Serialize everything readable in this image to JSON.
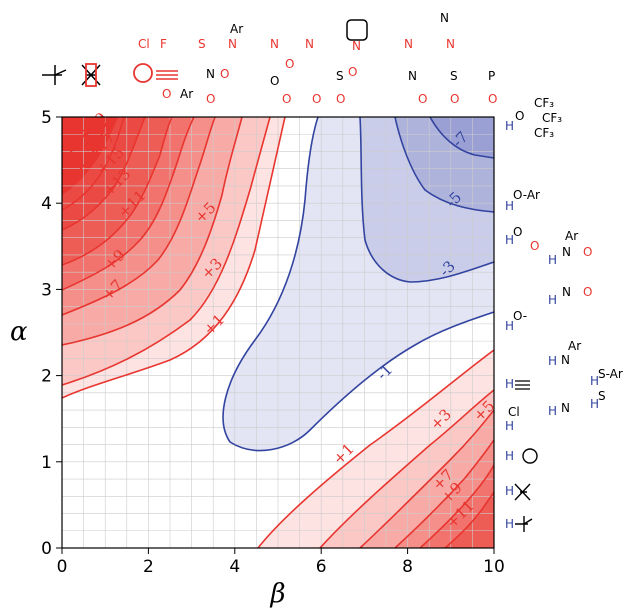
{
  "chart_data": {
    "type": "contour",
    "title": "",
    "xlabel": "β",
    "ylabel": "α",
    "xlim": [
      0,
      10
    ],
    "ylim": [
      0,
      5
    ],
    "x_ticks": [
      0,
      2,
      4,
      6,
      8,
      10
    ],
    "y_ticks": [
      0,
      1,
      2,
      3,
      4,
      5
    ],
    "grid": true,
    "colors": {
      "positive": "#e8352f",
      "negative": "#3344a0",
      "grid": "#cccccc"
    },
    "contour_levels": [
      -7,
      -5,
      -3,
      -1,
      1,
      3,
      5,
      7,
      9,
      11,
      13,
      15,
      17,
      19
    ],
    "contour_labels": [
      {
        "text": "+19",
        "x": 0.8,
        "y": 4.85
      },
      {
        "text": "+17",
        "x": 1.0,
        "y": 4.62
      },
      {
        "text": "+15",
        "x": 1.2,
        "y": 4.45
      },
      {
        "text": "+13",
        "x": 1.35,
        "y": 4.2
      },
      {
        "text": "+11",
        "x": 1.7,
        "y": 3.95
      },
      {
        "text": "+9",
        "x": 1.3,
        "y": 3.3
      },
      {
        "text": "+7",
        "x": 1.25,
        "y": 2.95
      },
      {
        "text": "+5",
        "x": 3.4,
        "y": 3.85
      },
      {
        "text": "+3",
        "x": 3.55,
        "y": 3.2
      },
      {
        "text": "+1",
        "x": 3.6,
        "y": 2.55
      },
      {
        "text": "-7",
        "x": 9.3,
        "y": 4.7
      },
      {
        "text": "-5",
        "x": 9.15,
        "y": 4.0
      },
      {
        "text": "-3",
        "x": 9.0,
        "y": 3.2
      },
      {
        "text": "-1",
        "x": 7.55,
        "y": 2.0
      },
      {
        "text": "+1",
        "x": 6.6,
        "y": 1.05
      },
      {
        "text": "+3",
        "x": 8.85,
        "y": 1.45
      },
      {
        "text": "+5",
        "x": 9.85,
        "y": 1.55
      },
      {
        "text": "+7",
        "x": 8.9,
        "y": 0.75
      },
      {
        "text": "+9",
        "x": 9.1,
        "y": 0.6
      },
      {
        "text": "+11",
        "x": 9.3,
        "y": 0.35
      }
    ],
    "right_annotations": [
      {
        "text": "H",
        "sub": "O",
        "extra": "CF₃ / CF₃ / CF₃",
        "y": 4.85
      },
      {
        "text": "H",
        "sub": "O-Ar",
        "y": 4.15
      },
      {
        "text": "H",
        "sub": "O ester",
        "y": 3.55
      },
      {
        "text": "H",
        "sub": "N amide (Ar)",
        "y": 3.35
      },
      {
        "text": "H",
        "sub": "N amide",
        "y": 2.95
      },
      {
        "text": "H",
        "sub": "O-",
        "y": 2.6
      },
      {
        "text": "H",
        "sub": "N-Ar",
        "y": 2.15
      },
      {
        "text": "H",
        "sub": "S-Ar",
        "y": 1.95
      },
      {
        "text": "H",
        "sub": "≡",
        "y": 1.88
      },
      {
        "text": "H",
        "sub": "S-",
        "y": 1.7
      },
      {
        "text": "H",
        "sub": "N",
        "y": 1.6
      },
      {
        "text": "H",
        "sub": "Cl",
        "y": 1.4
      },
      {
        "text": "H",
        "sub": "benzene",
        "y": 1.05
      },
      {
        "text": "H",
        "sub": "alkene",
        "y": 0.65
      },
      {
        "text": "H",
        "sub": "alkane",
        "y": 0.3
      }
    ],
    "top_annotations": {
      "row1": [
        "Cl",
        "F",
        "S",
        "N-Ar",
        "N≡",
        "N=",
        "pyridine N",
        "N",
        "N amidine"
      ],
      "row2": [
        "alkane",
        "alkene",
        "benzene ≡",
        "N⁺O₂⁻ / O-Ar",
        "O ether / ester O",
        "ketone O",
        "SO₂",
        "N amide O",
        "S=O",
        "P=O"
      ]
    }
  }
}
